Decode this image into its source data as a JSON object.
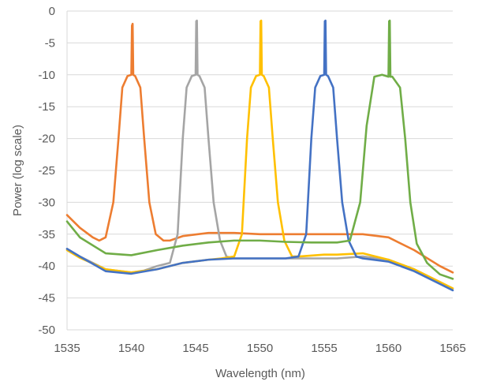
{
  "chart_data": {
    "type": "line",
    "title": "",
    "xlabel": "Wavelength (nm)",
    "ylabel": "Power (log scale)",
    "xlim": [
      1535,
      1565
    ],
    "ylim": [
      -50,
      0
    ],
    "xticks": [
      1535,
      1540,
      1545,
      1550,
      1555,
      1560,
      1565
    ],
    "yticks": [
      0,
      -5,
      -10,
      -15,
      -20,
      -25,
      -30,
      -35,
      -40,
      -45,
      -50
    ],
    "grid": "horizontal",
    "legend": "none",
    "series": [
      {
        "color": "#ED7D31",
        "x": [
          1535,
          1536,
          1537,
          1537.5,
          1538,
          1538.6,
          1539.0,
          1539.3,
          1539.7,
          1540.0,
          1540.05,
          1540.1,
          1540.15,
          1540.3,
          1540.7,
          1541.0,
          1541.4,
          1541.9,
          1542.5,
          1543,
          1544,
          1546,
          1548,
          1550,
          1552,
          1554,
          1556,
          1558,
          1560,
          1562,
          1564,
          1565
        ],
        "y": [
          -32,
          -34,
          -35.5,
          -36,
          -35.5,
          -30,
          -20,
          -12,
          -10.2,
          -10,
          -2.3,
          -2.0,
          -10,
          -10.2,
          -12,
          -20,
          -30,
          -35,
          -36,
          -36,
          -35.3,
          -34.8,
          -34.8,
          -35,
          -35,
          -35,
          -35,
          -35,
          -35.5,
          -37.5,
          -40,
          -41
        ]
      },
      {
        "color": "#A5A5A5",
        "x": [
          1535,
          1536,
          1538,
          1540,
          1541,
          1542,
          1543,
          1543.6,
          1544.0,
          1544.3,
          1544.7,
          1545.0,
          1545.05,
          1545.1,
          1545.15,
          1545.3,
          1545.7,
          1546.0,
          1546.4,
          1546.9,
          1547.4,
          1548,
          1550,
          1552,
          1554,
          1556,
          1558,
          1560,
          1562,
          1564,
          1565
        ],
        "y": [
          -37.3,
          -38.5,
          -40.5,
          -41,
          -40.7,
          -40,
          -39.5,
          -35,
          -20,
          -12,
          -10.2,
          -10,
          -1.6,
          -1.5,
          -10,
          -10.2,
          -12,
          -20,
          -30,
          -36,
          -38.5,
          -38.8,
          -38.8,
          -38.8,
          -38.8,
          -38.8,
          -38.5,
          -39,
          -40.5,
          -42.5,
          -43.5
        ]
      },
      {
        "color": "#FFC000",
        "x": [
          1535,
          1536,
          1538,
          1540,
          1542,
          1544,
          1546,
          1547,
          1548,
          1548.6,
          1549.0,
          1549.3,
          1549.7,
          1550.0,
          1550.05,
          1550.1,
          1550.15,
          1550.3,
          1550.7,
          1551.0,
          1551.4,
          1551.9,
          1552.5,
          1553,
          1555,
          1556,
          1558,
          1560,
          1562,
          1564,
          1565
        ],
        "y": [
          -37.5,
          -38.7,
          -40.5,
          -41,
          -40.5,
          -39.5,
          -39,
          -38.8,
          -38.5,
          -35,
          -20,
          -12,
          -10.2,
          -10,
          -1.6,
          -1.5,
          -10,
          -10.2,
          -12,
          -20,
          -30,
          -36,
          -38.5,
          -38.5,
          -38.2,
          -38.2,
          -38,
          -39,
          -40.5,
          -42.5,
          -43.5
        ]
      },
      {
        "color": "#4472C4",
        "x": [
          1535,
          1536,
          1538,
          1540,
          1542,
          1544,
          1546,
          1548,
          1550,
          1552,
          1553,
          1553.6,
          1554.0,
          1554.3,
          1554.7,
          1555.0,
          1555.05,
          1555.1,
          1555.15,
          1555.3,
          1555.7,
          1556.0,
          1556.4,
          1556.9,
          1557.5,
          1558,
          1560,
          1562,
          1564,
          1565
        ],
        "y": [
          -37.3,
          -38.5,
          -40.8,
          -41.2,
          -40.5,
          -39.5,
          -39,
          -38.8,
          -38.8,
          -38.8,
          -38.5,
          -35,
          -20,
          -12,
          -10.2,
          -10,
          -1.6,
          -1.5,
          -10,
          -10.2,
          -12,
          -20,
          -30,
          -36,
          -38.5,
          -38.8,
          -39.3,
          -40.8,
          -42.8,
          -43.8
        ]
      },
      {
        "color": "#70AD47",
        "x": [
          1535,
          1536,
          1538,
          1540,
          1542,
          1544,
          1546,
          1548,
          1550,
          1552,
          1554,
          1556,
          1557,
          1557.8,
          1558.3,
          1558.9,
          1559.5,
          1560.0,
          1560.05,
          1560.1,
          1560.15,
          1560.3,
          1560.9,
          1561.3,
          1561.7,
          1562.2,
          1563,
          1564,
          1565
        ],
        "y": [
          -33,
          -35.5,
          -38,
          -38.3,
          -37.5,
          -36.8,
          -36.3,
          -36,
          -36,
          -36.2,
          -36.3,
          -36.3,
          -36,
          -30,
          -18,
          -10.3,
          -10,
          -10.3,
          -1.6,
          -1.5,
          -10.3,
          -10.3,
          -12,
          -20,
          -30,
          -36.5,
          -39.5,
          -41.3,
          -42
        ]
      }
    ]
  }
}
